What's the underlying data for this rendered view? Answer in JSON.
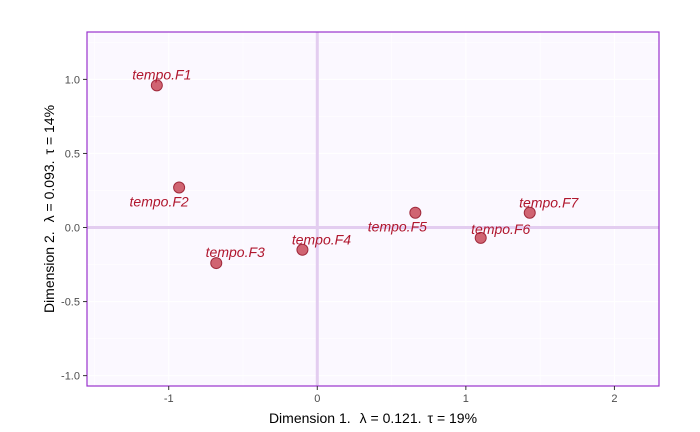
{
  "colors": {
    "panel_background": "#fbf8ff",
    "panel_border": "#9a32cd",
    "grid_major": "#ffffff",
    "reference_lines": "#e3cdf0",
    "point_fill": "#cd5c6a",
    "point_stroke": "#a02a3c",
    "label_text": "#b0172e"
  },
  "chart_data": {
    "type": "scatter",
    "xlabel_parts": {
      "dim": "Dimension 1.",
      "lambda": "λ = 0.121.",
      "tau": "τ = 19%"
    },
    "ylabel_parts": {
      "dim": "Dimension 2.",
      "lambda": "λ = 0.093.",
      "tau": "τ = 14%"
    },
    "xlim": [
      -1.55,
      2.3
    ],
    "ylim": [
      -1.07,
      1.32
    ],
    "x_ticks": [
      -1,
      0,
      1,
      2
    ],
    "y_ticks": [
      -1.0,
      -0.5,
      0.0,
      0.5,
      1.0
    ],
    "x_tick_labels": [
      "-1",
      "0",
      "1",
      "2"
    ],
    "y_tick_labels": [
      "-1.0",
      "-0.5",
      "0.0",
      "0.5",
      "1.0"
    ],
    "reference_lines": {
      "x": 0,
      "y": 0
    },
    "grid": true,
    "points": [
      {
        "label": "tempo.F1",
        "x": -1.08,
        "y": 0.96
      },
      {
        "label": "tempo.F2",
        "x": -0.93,
        "y": 0.27
      },
      {
        "label": "tempo.F3",
        "x": -0.68,
        "y": -0.24
      },
      {
        "label": "tempo.F4",
        "x": -0.1,
        "y": -0.15
      },
      {
        "label": "tempo.F5",
        "x": 0.66,
        "y": 0.1
      },
      {
        "label": "tempo.F6",
        "x": 1.1,
        "y": -0.07
      },
      {
        "label": "tempo.F7",
        "x": 1.43,
        "y": 0.1
      }
    ]
  }
}
